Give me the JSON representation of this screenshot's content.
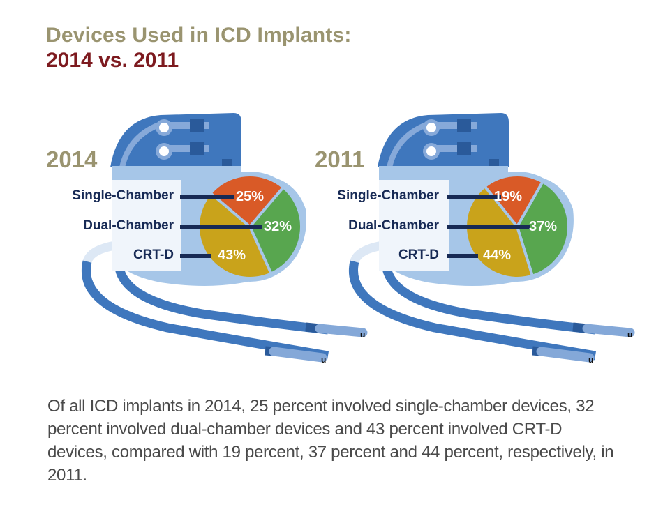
{
  "title": {
    "line1": "Devices Used in ICD Implants:",
    "line2": "2014 vs. 2011"
  },
  "colors": {
    "single_chamber": "#d95a27",
    "dual_chamber": "#58a64f",
    "crt_d": "#c9a31b",
    "device_dark": "#3f77bd",
    "device_light": "#a6c6e8",
    "label_text": "#172a55",
    "title_gold": "#9a9470",
    "title_red": "#7d1a1f"
  },
  "chart_data": [
    {
      "type": "pie",
      "title": "2014",
      "categories": [
        "Single-Chamber",
        "Dual-Chamber",
        "CRT-D"
      ],
      "values": [
        25,
        32,
        43
      ],
      "labels": [
        "25%",
        "32%",
        "43%"
      ],
      "unit": "percent"
    },
    {
      "type": "pie",
      "title": "2011",
      "categories": [
        "Single-Chamber",
        "Dual-Chamber",
        "CRT-D"
      ],
      "values": [
        19,
        37,
        44
      ],
      "labels": [
        "19%",
        "37%",
        "44%"
      ],
      "unit": "percent"
    }
  ],
  "caption": "Of all ICD implants in 2014, 25 percent involved single-chamber devices, 32 percent involved dual-chamber devices and 43 percent involved CRT-D devices, compared with 19 percent, 37 percent and 44 percent, respectively, in 2011."
}
